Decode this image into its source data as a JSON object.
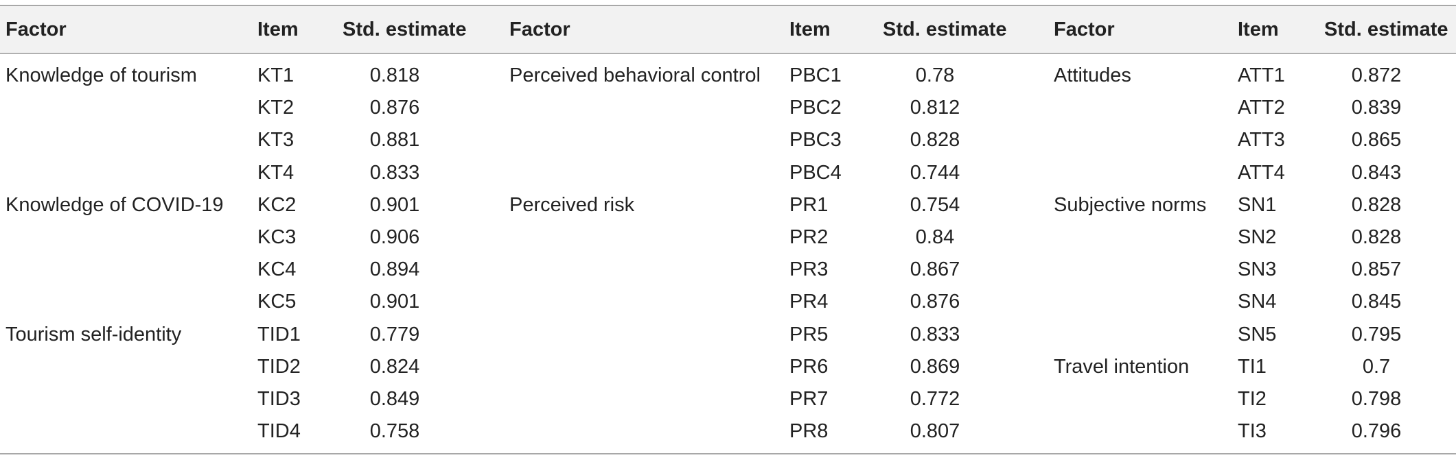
{
  "headers": [
    "Factor",
    "Item",
    "Std. estimate",
    "Factor",
    "Item",
    "Std. estimate",
    "Factor",
    "Item",
    "Std. estimate"
  ],
  "rows": [
    [
      "Knowledge of tourism",
      "KT1",
      "0.818",
      "Perceived behavioral control",
      "PBC1",
      "0.78",
      "Attitudes",
      "ATT1",
      "0.872"
    ],
    [
      "",
      "KT2",
      "0.876",
      "",
      "PBC2",
      "0.812",
      "",
      "ATT2",
      "0.839"
    ],
    [
      "",
      "KT3",
      "0.881",
      "",
      "PBC3",
      "0.828",
      "",
      "ATT3",
      "0.865"
    ],
    [
      "",
      "KT4",
      "0.833",
      "",
      "PBC4",
      "0.744",
      "",
      "ATT4",
      "0.843"
    ],
    [
      "Knowledge of COVID-19",
      "KC2",
      "0.901",
      "Perceived risk",
      "PR1",
      "0.754",
      "Subjective norms",
      "SN1",
      "0.828"
    ],
    [
      "",
      "KC3",
      "0.906",
      "",
      "PR2",
      "0.84",
      "",
      "SN2",
      "0.828"
    ],
    [
      "",
      "KC4",
      "0.894",
      "",
      "PR3",
      "0.867",
      "",
      "SN3",
      "0.857"
    ],
    [
      "",
      "KC5",
      "0.901",
      "",
      "PR4",
      "0.876",
      "",
      "SN4",
      "0.845"
    ],
    [
      "Tourism self-identity",
      "TID1",
      "0.779",
      "",
      "PR5",
      "0.833",
      "",
      "SN5",
      "0.795"
    ],
    [
      "",
      "TID2",
      "0.824",
      "",
      "PR6",
      "0.869",
      "Travel intention",
      "TI1",
      "0.7"
    ],
    [
      "",
      "TID3",
      "0.849",
      "",
      "PR7",
      "0.772",
      "",
      "TI2",
      "0.798"
    ],
    [
      "",
      "TID4",
      "0.758",
      "",
      "PR8",
      "0.807",
      "",
      "TI3",
      "0.796"
    ]
  ]
}
